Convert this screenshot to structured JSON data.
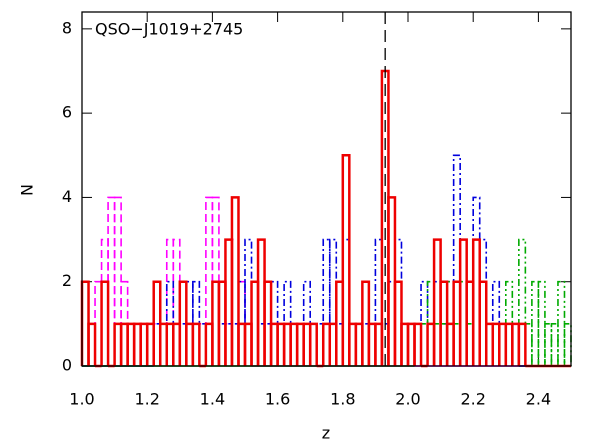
{
  "chart_data": {
    "type": "histogram",
    "annotation": "QSO−J1019+2745",
    "xlabel": "z",
    "ylabel": "N",
    "bins": [
      1.0,
      1.02,
      1.04,
      1.06,
      1.08,
      1.1,
      1.12,
      1.14,
      1.16,
      1.18,
      1.2,
      1.22,
      1.24,
      1.26,
      1.28,
      1.3,
      1.32,
      1.34,
      1.36,
      1.38,
      1.4,
      1.42,
      1.44,
      1.46,
      1.48,
      1.5,
      1.52,
      1.54,
      1.56,
      1.58,
      1.6,
      1.62,
      1.64,
      1.66,
      1.68,
      1.7,
      1.72,
      1.74,
      1.76,
      1.78,
      1.8,
      1.82,
      1.84,
      1.86,
      1.88,
      1.9,
      1.92,
      1.94,
      1.96,
      1.98,
      2.0,
      2.02,
      2.04,
      2.06,
      2.08,
      2.1,
      2.12,
      2.14,
      2.16,
      2.18,
      2.2,
      2.22,
      2.24,
      2.26,
      2.28,
      2.3,
      2.32,
      2.34,
      2.36,
      2.38,
      2.4,
      2.42,
      2.44,
      2.46,
      2.48,
      2.5
    ],
    "series": [
      {
        "color": "#ff00ff",
        "linestyle": "dashed",
        "values": [
          0,
          1,
          2,
          3,
          4,
          4,
          2,
          1,
          1,
          1,
          1,
          1,
          1,
          3,
          3,
          2,
          1,
          1,
          1,
          4,
          4,
          2,
          1,
          3,
          2,
          1,
          0,
          0,
          0,
          0,
          0,
          0,
          0,
          0,
          0,
          0,
          0,
          0,
          0,
          0,
          0,
          0,
          0,
          0,
          0,
          0,
          0,
          0,
          0,
          0,
          0,
          0,
          0,
          0,
          0,
          0,
          0,
          0,
          0,
          0,
          0,
          0,
          0,
          0,
          0,
          0,
          0,
          0,
          0,
          0,
          0,
          0,
          0,
          0,
          0
        ]
      },
      {
        "color": "#0000dd",
        "linestyle": "dashdot",
        "values": [
          0,
          0,
          0,
          0,
          0,
          0,
          0,
          0,
          0,
          0,
          0,
          1,
          1,
          2,
          1,
          1,
          2,
          2,
          1,
          1,
          2,
          1,
          1,
          1,
          2,
          3,
          2,
          1,
          1,
          2,
          1,
          2,
          1,
          1,
          2,
          1,
          1,
          3,
          3,
          1,
          3,
          1,
          1,
          1,
          1,
          3,
          1,
          2,
          3,
          1,
          1,
          1,
          2,
          1,
          2,
          1,
          2,
          5,
          3,
          2,
          4,
          3,
          1,
          2,
          1,
          1,
          1,
          0,
          0,
          0,
          0,
          0,
          0,
          0,
          0
        ]
      },
      {
        "color": "#00aa00",
        "linestyle": "dashdotdot",
        "values": [
          0,
          0,
          0,
          0,
          0,
          0,
          0,
          0,
          0,
          0,
          0,
          0,
          0,
          0,
          0,
          0,
          0,
          0,
          0,
          0,
          0,
          0,
          0,
          0,
          0,
          0,
          0,
          0,
          0,
          0,
          0,
          0,
          0,
          0,
          0,
          0,
          0,
          0,
          0,
          0,
          0,
          0,
          0,
          0,
          0,
          0,
          0,
          0,
          0,
          0,
          0,
          1,
          1,
          2,
          1,
          1,
          2,
          1,
          2,
          1,
          3,
          2,
          1,
          1,
          1,
          2,
          1,
          3,
          1,
          2,
          2,
          1,
          1,
          2,
          1
        ]
      },
      {
        "color": "#ee0000",
        "linestyle": "solid",
        "values": [
          2,
          1,
          0,
          2,
          0,
          1,
          1,
          1,
          1,
          1,
          1,
          2,
          1,
          1,
          1,
          2,
          1,
          1,
          0,
          1,
          2,
          2,
          3,
          4,
          1,
          1,
          2,
          3,
          2,
          1,
          1,
          1,
          1,
          1,
          1,
          1,
          0,
          1,
          1,
          2,
          5,
          1,
          1,
          2,
          1,
          1,
          7,
          4,
          2,
          1,
          1,
          1,
          0,
          1,
          3,
          2,
          1,
          2,
          3,
          2,
          3,
          2,
          1,
          1,
          1,
          1,
          1,
          1,
          0,
          0,
          0,
          0,
          0,
          0,
          0
        ]
      }
    ],
    "vline": 1.93,
    "xlim": [
      1.0,
      2.5
    ],
    "ylim": [
      0,
      8.4
    ],
    "xticks": [
      {
        "value": 1.0,
        "label": "1.0"
      },
      1.2,
      1.4,
      1.6,
      1.8,
      {
        "value": 2.0,
        "label": "2.0"
      },
      2.2,
      2.4
    ],
    "yticks": [
      0,
      2,
      4,
      6,
      8
    ]
  }
}
